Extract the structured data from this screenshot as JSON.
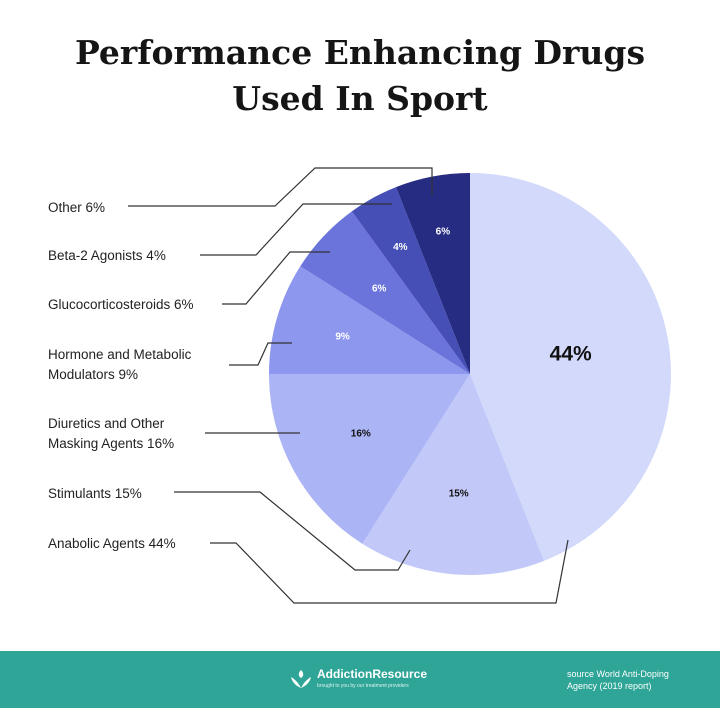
{
  "header": {
    "title_line1": "Performance Enhancing Drugs",
    "title_line2": "Used In Sport"
  },
  "chart_data": {
    "type": "pie",
    "title": "Performance Enhancing Drugs Used In Sport",
    "slices": [
      {
        "name": "Anabolic Agents",
        "value": 44,
        "label": "44%",
        "legend": "Anabolic Agents 44%",
        "color": "#d3d9fb",
        "text_color": "#111111"
      },
      {
        "name": "Stimulants",
        "value": 15,
        "label": "15%",
        "legend": "Stimulants 15%",
        "color": "#c2c9f9",
        "text_color": "#111111"
      },
      {
        "name": "Diuretics and Other Masking Agents",
        "value": 16,
        "label": "16%",
        "legend": "Diuretics and Other Masking Agents 16%",
        "color": "#abb4f4",
        "text_color": "#111111"
      },
      {
        "name": "Hormone and Metabolic Modulators",
        "value": 9,
        "label": "9%",
        "legend": "Hormone and Metabolic Modulators 9%",
        "color": "#8d97ee",
        "text_color": "#ffffff"
      },
      {
        "name": "Glucocorticosteroids",
        "value": 6,
        "label": "6%",
        "legend": "Glucocorticosteroids 6%",
        "color": "#6a74da",
        "text_color": "#ffffff"
      },
      {
        "name": "Beta-2 Agonists",
        "value": 4,
        "label": "4%",
        "legend": "Beta-2 Agonists 4%",
        "color": "#464fb5",
        "text_color": "#ffffff"
      },
      {
        "name": "Other",
        "value": 6,
        "label": "6%",
        "legend": "Other 6%",
        "color": "#262c82",
        "text_color": "#ffffff"
      }
    ]
  },
  "footer": {
    "brand": "AddictionResource",
    "tagline": "brought to you by our treatment providers",
    "source_line1": "source World Anti-Doping",
    "source_line2": "Agency (2019 report)",
    "background": "#2ea597"
  }
}
